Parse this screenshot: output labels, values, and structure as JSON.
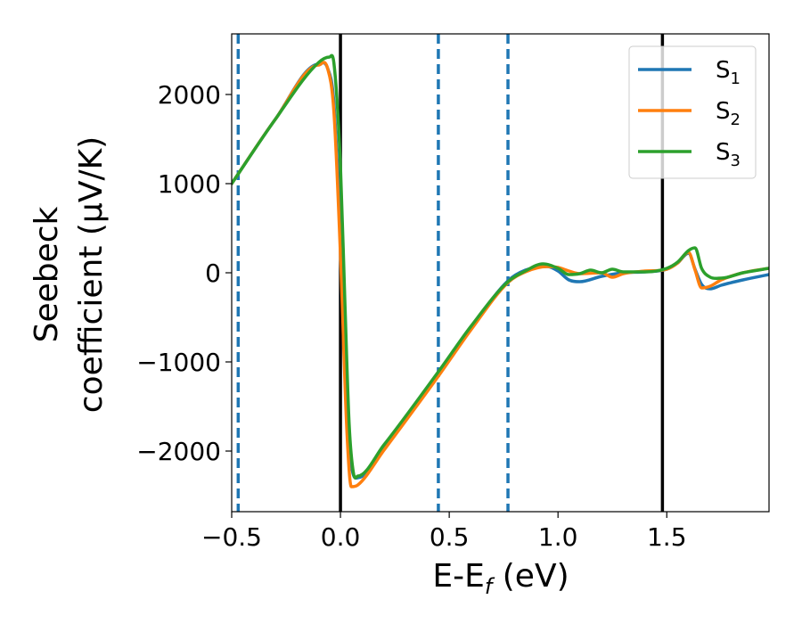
{
  "chart_data": {
    "type": "line",
    "xlabel": {
      "main": "E-E",
      "sub": "f",
      "after": " (eV)"
    },
    "ylabel": {
      "line1": "Seebeck",
      "line2": "coefficient  (μV/K)"
    },
    "xlim": [
      -0.5,
      1.97
    ],
    "ylim": [
      -2680,
      2680
    ],
    "xticks": [
      -0.5,
      0.0,
      0.5,
      1.0,
      1.5
    ],
    "xtick_labels": [
      "−0.5",
      "0.0",
      "0.5",
      "1.0",
      "1.5"
    ],
    "yticks": [
      2000,
      1000,
      0,
      -1000,
      -2000
    ],
    "ytick_labels": [
      "2000",
      "1000",
      "0",
      "−1000",
      "−2000"
    ],
    "grid": false,
    "legend_position": "top-right",
    "vlines_solid": {
      "x": [
        0.0,
        1.48
      ],
      "color": "#000000"
    },
    "vlines_dashed": {
      "x": [
        -0.47,
        0.45,
        0.77
      ],
      "color": "#1f77b4"
    },
    "series": [
      {
        "name": "S",
        "sub": "1",
        "color": "#1f77b4",
        "x": [
          -0.5,
          -0.3,
          -0.1,
          -0.06,
          -0.03,
          0.0,
          0.03,
          0.05,
          0.08,
          0.2,
          0.45,
          0.6,
          0.77,
          0.85,
          0.95,
          1.0,
          1.05,
          1.1,
          1.2,
          1.3,
          1.4,
          1.5,
          1.55,
          1.6,
          1.63,
          1.66,
          1.7,
          1.75,
          1.85,
          1.97
        ],
        "y": [
          1000,
          1720,
          2340,
          2300,
          1900,
          400,
          -1500,
          -2150,
          -2300,
          -1960,
          -1140,
          -620,
          -90,
          30,
          70,
          20,
          -80,
          -100,
          -40,
          0,
          10,
          40,
          110,
          220,
          40,
          -130,
          -180,
          -140,
          -80,
          -20
        ]
      },
      {
        "name": "S",
        "sub": "2",
        "color": "#ff7f0e",
        "x": [
          -0.5,
          -0.3,
          -0.1,
          -0.06,
          -0.03,
          0.0,
          0.03,
          0.05,
          0.08,
          0.2,
          0.45,
          0.6,
          0.77,
          0.85,
          0.95,
          1.0,
          1.05,
          1.1,
          1.2,
          1.25,
          1.3,
          1.4,
          1.5,
          1.55,
          1.6,
          1.63,
          1.66,
          1.7,
          1.75,
          1.85,
          1.97
        ],
        "y": [
          1000,
          1720,
          2330,
          2300,
          1800,
          200,
          -1800,
          -2400,
          -2380,
          -1990,
          -1160,
          -640,
          -110,
          10,
          70,
          60,
          20,
          -10,
          0,
          -50,
          -10,
          20,
          40,
          110,
          230,
          30,
          -170,
          -150,
          -80,
          0,
          50
        ]
      },
      {
        "name": "S",
        "sub": "3",
        "color": "#2ca02c",
        "x": [
          -0.5,
          -0.3,
          -0.1,
          -0.05,
          -0.03,
          0.0,
          0.02,
          0.04,
          0.06,
          0.08,
          0.2,
          0.45,
          0.6,
          0.77,
          0.85,
          0.93,
          1.0,
          1.05,
          1.1,
          1.15,
          1.2,
          1.25,
          1.3,
          1.4,
          1.5,
          1.55,
          1.6,
          1.63,
          1.66,
          1.7,
          1.75,
          1.85,
          1.97
        ],
        "y": [
          1000,
          1720,
          2360,
          2420,
          2350,
          1200,
          -300,
          -1700,
          -2250,
          -2280,
          -1930,
          -1110,
          -600,
          -100,
          20,
          100,
          50,
          -20,
          -10,
          30,
          0,
          40,
          10,
          10,
          50,
          120,
          250,
          280,
          50,
          -50,
          -60,
          0,
          50
        ]
      }
    ]
  }
}
